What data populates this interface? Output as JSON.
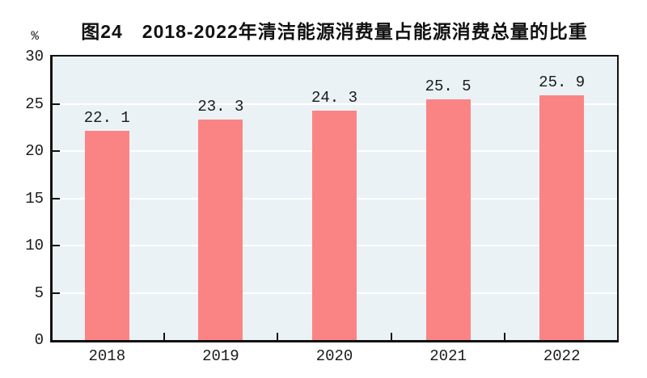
{
  "chart": {
    "title": "图24　2018-2022年清洁能源消费量占能源消费总量的比重",
    "y_unit": "%"
  },
  "chart_data": {
    "type": "bar",
    "title": "图24　2018-2022年清洁能源消费量占能源消费总量的比重",
    "categories": [
      "2018",
      "2019",
      "2020",
      "2021",
      "2022"
    ],
    "values": [
      22.1,
      23.3,
      24.3,
      25.5,
      25.9
    ],
    "value_labels": [
      "22. 1",
      "23. 3",
      "24. 3",
      "25. 5",
      "25. 9"
    ],
    "xlabel": "",
    "ylabel": "%",
    "ylim": [
      0,
      30
    ],
    "yticks": [
      0,
      5,
      10,
      15,
      20,
      25,
      30
    ],
    "grid": "horizontal white lines at each ytick",
    "legend": "none",
    "colors": {
      "bar_fill": "#FA8484",
      "plot_background": "#EBF2F6",
      "gridline": "#FFFFFF",
      "axis": "#111111",
      "text": "#1a1a1a"
    }
  }
}
